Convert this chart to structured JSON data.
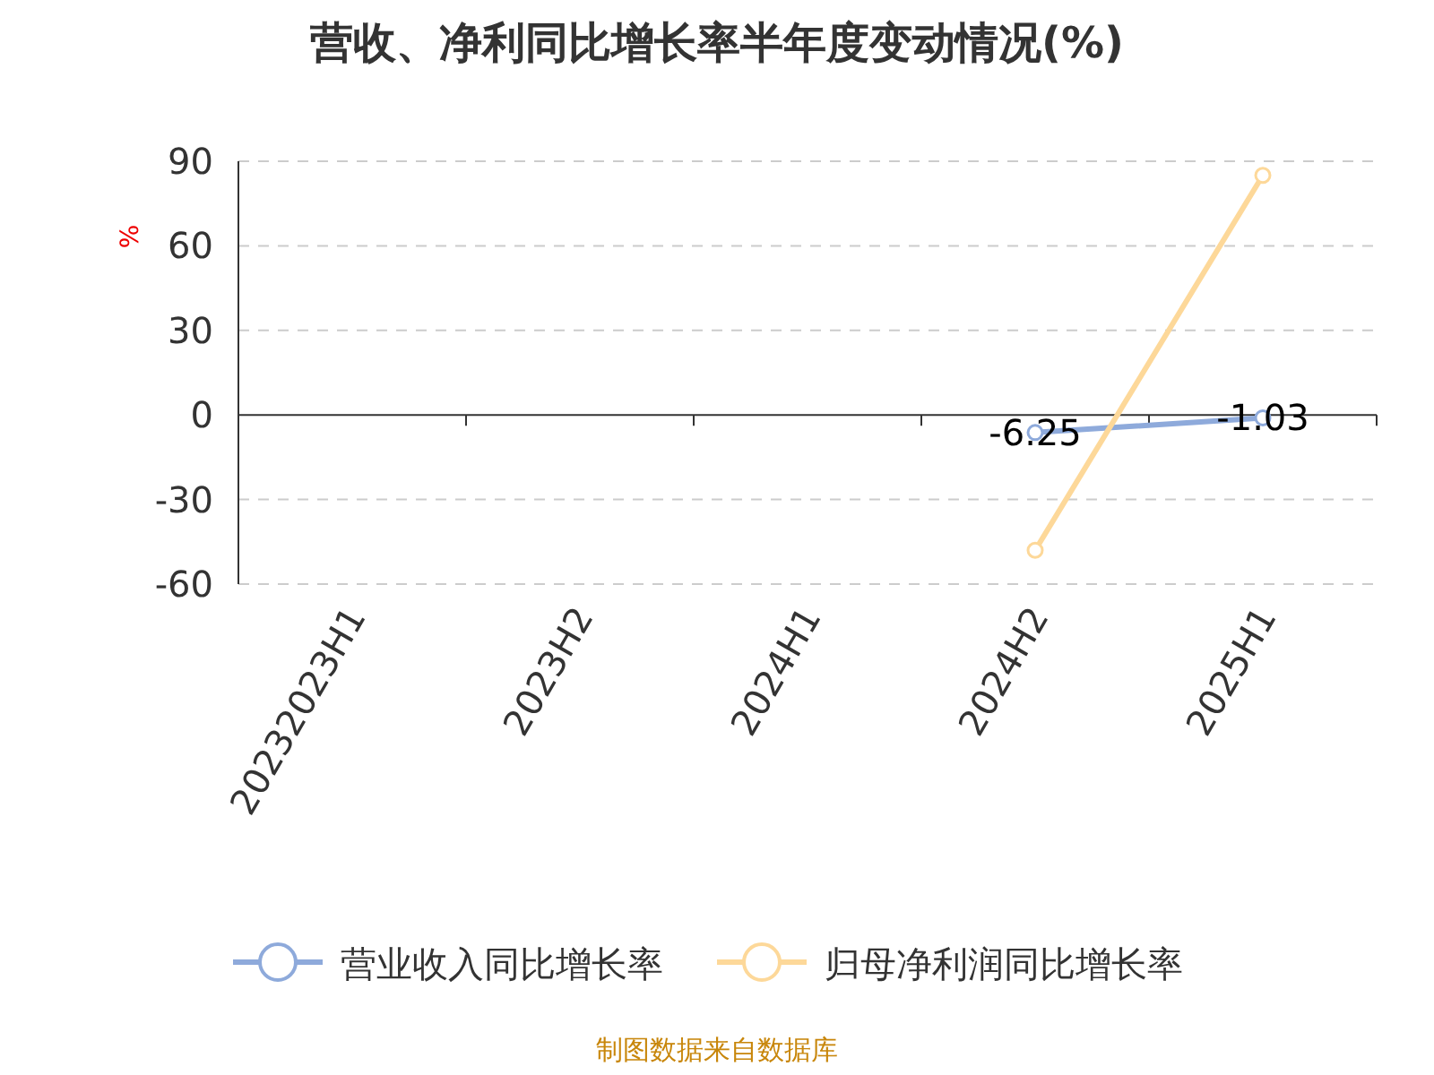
{
  "chart_data": {
    "type": "line",
    "title": "营收、净利同比增长率半年度变动情况(%)",
    "ylabel": "%",
    "categories": [
      "20232023H1",
      "2023H2",
      "2024H1",
      "2024H2",
      "2025H1"
    ],
    "series": [
      {
        "name": "营业收入同比增长率",
        "color": "#8eaadb",
        "values": [
          null,
          null,
          null,
          -6.25,
          -1.03
        ],
        "value_labels": [
          null,
          null,
          null,
          "-6.25",
          "-1.03"
        ]
      },
      {
        "name": "归母净利润同比增长率",
        "color": "#fdd899",
        "values": [
          null,
          null,
          null,
          -48,
          85
        ]
      }
    ],
    "ylim": [
      -60,
      90
    ],
    "yticks": [
      -60,
      -30,
      0,
      30,
      60,
      90
    ],
    "grid": "y",
    "legend": "bottom",
    "marker": "circle",
    "line_style": "solid",
    "annotations": [
      "制图数据来自数据库"
    ]
  }
}
